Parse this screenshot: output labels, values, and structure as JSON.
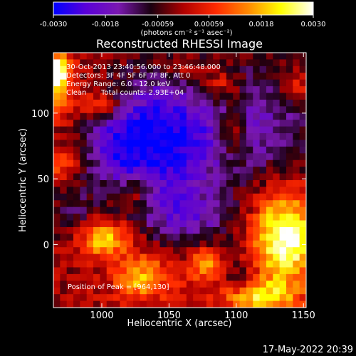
{
  "chart_data": {
    "type": "heatmap",
    "title": "Reconstructed RHESSI Image",
    "xlabel": "Heliocentric X (arcsec)",
    "ylabel": "Heliocentric Y (arcsec)",
    "xlim": [
      964,
      1152
    ],
    "ylim": [
      -48,
      146
    ],
    "x_ticks": [
      1000,
      1050,
      1100,
      1150
    ],
    "y_ticks": [
      0,
      50,
      100
    ],
    "colorbar": {
      "range": [
        -0.003,
        0.003
      ],
      "tick_values": [
        -0.003,
        -0.0018,
        -0.00059,
        0.00059,
        0.0018,
        0.003
      ],
      "tick_labels": [
        "-0.0030",
        "-0.0018",
        "-0.00059",
        "0.00059",
        "0.0018",
        "0.0030"
      ],
      "units_label": "(photons cm⁻² s⁻¹ asec⁻²)",
      "colors": [
        "#0000ff",
        "#5a00d8",
        "#7a18b0",
        "#1a0010",
        "#b00000",
        "#ff2a00",
        "#ff8a00",
        "#ffff00",
        "#ffffff"
      ]
    },
    "annotations": [
      "30-Oct-2013 23:40:56.000 to 23:46:48.000",
      "Detectors: 3F 4F 5F 6F 7F 8F, Att 0",
      "Energy Range: 6.0 - 12.0 keV",
      "Clean",
      "Total counts: 2.93E+04"
    ],
    "peak_label": "Position of Peak = [964,130]",
    "peak_value": 0.003,
    "features": [
      {
        "x": 1048,
        "y": 80,
        "sx": 28,
        "sy": 38,
        "value": -0.0028
      },
      {
        "x": 1010,
        "y": 75,
        "sx": 18,
        "sy": 22,
        "value": -0.0016
      },
      {
        "x": 1118,
        "y": 95,
        "sx": 30,
        "sy": 35,
        "value": -0.0015
      },
      {
        "x": 1065,
        "y": 20,
        "sx": 22,
        "sy": 14,
        "value": -0.0013
      },
      {
        "x": 1100,
        "y": -30,
        "sx": 14,
        "sy": 14,
        "value": -0.0012
      },
      {
        "x": 980,
        "y": 20,
        "sx": 12,
        "sy": 18,
        "value": -0.001
      },
      {
        "x": 964,
        "y": 132,
        "sx": 8,
        "sy": 9,
        "value": 0.004
      },
      {
        "x": 968,
        "y": 110,
        "sx": 8,
        "sy": 10,
        "value": 0.0015
      },
      {
        "x": 1136,
        "y": 5,
        "sx": 16,
        "sy": 24,
        "value": 0.0032
      },
      {
        "x": 1112,
        "y": -40,
        "sx": 20,
        "sy": 10,
        "value": 0.0025
      },
      {
        "x": 1000,
        "y": 5,
        "sx": 14,
        "sy": 10,
        "value": 0.0022
      },
      {
        "x": 1030,
        "y": -25,
        "sx": 14,
        "sy": 12,
        "value": 0.0019
      },
      {
        "x": 1078,
        "y": -15,
        "sx": 10,
        "sy": 9,
        "value": 0.0017
      },
      {
        "x": 1085,
        "y": 120,
        "sx": 14,
        "sy": 10,
        "value": 0.0015
      },
      {
        "x": 1097,
        "y": 85,
        "sx": 7,
        "sy": 12,
        "value": 0.0015
      },
      {
        "x": 1000,
        "y": 105,
        "sx": 10,
        "sy": 8,
        "value": 0.0014
      },
      {
        "x": 1025,
        "y": 40,
        "sx": 8,
        "sy": 7,
        "value": 0.0012
      },
      {
        "x": 970,
        "y": 60,
        "sx": 9,
        "sy": 7,
        "value": 0.0011
      },
      {
        "x": 1055,
        "y": 135,
        "sx": 10,
        "sy": 6,
        "value": 0.001
      },
      {
        "x": 1145,
        "y": 120,
        "sx": 8,
        "sy": 8,
        "value": 0.0012
      }
    ]
  },
  "footer": {
    "timestamp": "17-May-2022 20:39"
  }
}
